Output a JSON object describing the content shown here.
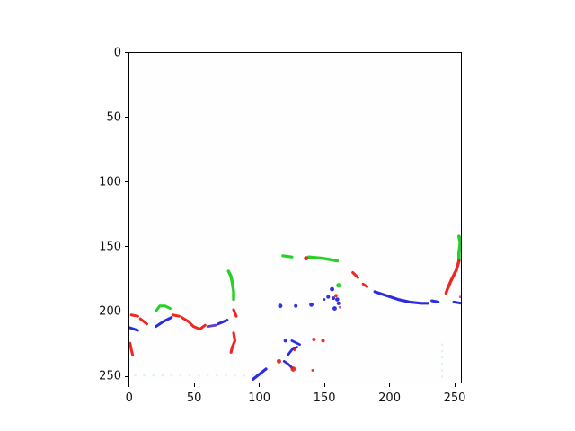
{
  "figure": {
    "background": "#ffffff",
    "title": ""
  },
  "axes": {
    "x_ticks": {
      "values": [
        0,
        50,
        100,
        150,
        200,
        250
      ],
      "labels": [
        "0",
        "50",
        "100",
        "150",
        "200",
        "250"
      ]
    },
    "y_ticks": {
      "values": [
        0,
        50,
        100,
        150,
        200,
        250
      ],
      "labels": [
        "0",
        "50",
        "100",
        "150",
        "200",
        "250"
      ]
    },
    "x_range": [
      -0.5,
      255.5
    ],
    "y_range": [
      255.5,
      -0.5
    ],
    "spine_color": "#000000",
    "tick_label_color": "#111111"
  },
  "chart_data": {
    "type": "heatmap",
    "title": "",
    "xlabel": "",
    "ylabel": "",
    "description": "imshow of a 256x256 mostly-white RGB image containing sparse red, green and blue edge/curve fragments concentrated in the lower half",
    "x_range": [
      -0.5,
      255.5
    ],
    "y_range": [
      255.5,
      -0.5
    ],
    "grid": false,
    "legend": null,
    "colors": {
      "red": "#ee1511",
      "green": "#16cd16",
      "blue": "#1c1cdd",
      "magenta": "#c24ac2",
      "purple": "#5a2fc0",
      "noise": "#a8dfee"
    },
    "default_stroke_width": 2.1,
    "strokes": [
      {
        "color": "red",
        "width": 2.1,
        "points": [
          [
            1,
            203
          ],
          [
            6,
            204
          ]
        ]
      },
      {
        "color": "red",
        "width": 2.1,
        "points": [
          [
            8,
            206
          ],
          [
            13,
            210
          ]
        ]
      },
      {
        "color": "blue",
        "width": 2.1,
        "points": [
          [
            20,
            212
          ],
          [
            26,
            208
          ],
          [
            32,
            205
          ]
        ]
      },
      {
        "color": "green",
        "width": 2.1,
        "points": [
          [
            20,
            200
          ],
          [
            23,
            196
          ],
          [
            27,
            196
          ],
          [
            31,
            198
          ]
        ]
      },
      {
        "color": "red",
        "width": 2.1,
        "points": [
          [
            33,
            203
          ],
          [
            38,
            204
          ]
        ]
      },
      {
        "color": "red",
        "width": 2.1,
        "points": [
          [
            40,
            205
          ],
          [
            45,
            208
          ],
          [
            49,
            212
          ],
          [
            54,
            214
          ],
          [
            58,
            211
          ]
        ]
      },
      {
        "color": "purple",
        "width": 2.0,
        "points": [
          [
            60,
            212
          ],
          [
            66,
            211
          ]
        ]
      },
      {
        "color": "blue",
        "width": 2.1,
        "points": [
          [
            68,
            210
          ],
          [
            75,
            207
          ]
        ]
      },
      {
        "color": "red",
        "width": 2.2,
        "points": [
          [
            80,
            199
          ],
          [
            82,
            204
          ]
        ]
      },
      {
        "color": "green",
        "width": 2.4,
        "points": [
          [
            76,
            169
          ],
          [
            78,
            173
          ],
          [
            79,
            178
          ],
          [
            80,
            185
          ],
          [
            80,
            191
          ]
        ]
      },
      {
        "color": "blue",
        "width": 2.1,
        "points": [
          [
            0,
            213
          ],
          [
            6,
            215
          ]
        ]
      },
      {
        "color": "red",
        "width": 2.1,
        "points": [
          [
            0,
            225
          ],
          [
            1,
            230
          ],
          [
            2,
            234
          ]
        ]
      },
      {
        "color": "red",
        "width": 2.2,
        "points": [
          [
            80,
            217
          ],
          [
            81,
            223
          ],
          [
            79,
            228
          ],
          [
            78,
            232
          ]
        ]
      },
      {
        "color": "blue",
        "width": 2.2,
        "points": [
          [
            95,
            253
          ],
          [
            105,
            245
          ]
        ]
      },
      {
        "color": "blue",
        "width": 1.9,
        "points": [
          [
            119,
            239
          ],
          [
            122,
            241
          ],
          [
            125,
            244
          ]
        ]
      },
      {
        "color": "blue",
        "width": 1.9,
        "points": [
          [
            125,
            223
          ],
          [
            131,
            226
          ]
        ]
      },
      {
        "color": "blue",
        "width": 1.9,
        "points": [
          [
            129,
            228
          ],
          [
            125,
            230
          ],
          [
            122,
            234
          ]
        ]
      },
      {
        "color": "green",
        "width": 2.2,
        "points": [
          [
            118,
            157
          ],
          [
            125,
            158
          ]
        ]
      },
      {
        "color": "green",
        "width": 2.4,
        "points": [
          [
            138,
            158
          ],
          [
            149,
            159
          ],
          [
            160,
            161
          ]
        ]
      },
      {
        "color": "red",
        "width": 2.1,
        "points": [
          [
            172,
            170
          ],
          [
            176,
            174
          ]
        ]
      },
      {
        "color": "red",
        "width": 2.1,
        "points": [
          [
            180,
            179
          ],
          [
            183,
            181
          ]
        ]
      },
      {
        "color": "blue",
        "width": 2.2,
        "points": [
          [
            189,
            185
          ],
          [
            198,
            188
          ],
          [
            207,
            191
          ],
          [
            216,
            193
          ],
          [
            225,
            194
          ],
          [
            230,
            194
          ]
        ]
      },
      {
        "color": "blue",
        "width": 2.1,
        "points": [
          [
            233,
            192
          ],
          [
            238,
            193
          ]
        ]
      },
      {
        "color": "blue",
        "width": 2.1,
        "points": [
          [
            250,
            193
          ],
          [
            256,
            194
          ]
        ]
      },
      {
        "color": "green",
        "width": 2.6,
        "points": [
          [
            254,
            142
          ],
          [
            255,
            147
          ],
          [
            254,
            155
          ],
          [
            254,
            160
          ]
        ]
      },
      {
        "color": "red",
        "width": 2.4,
        "points": [
          [
            254,
            161
          ],
          [
            252,
            168
          ],
          [
            248,
            176
          ],
          [
            245,
            183
          ],
          [
            244,
            186
          ]
        ]
      }
    ],
    "dots": [
      {
        "color": "red",
        "x": 115,
        "y": 239,
        "r": 1.7
      },
      {
        "color": "red",
        "x": 126,
        "y": 245,
        "r": 2.0
      },
      {
        "color": "blue",
        "x": 120,
        "y": 223,
        "r": 1.4
      },
      {
        "color": "red",
        "x": 127,
        "y": 230,
        "r": 1.0
      },
      {
        "color": "red",
        "x": 142,
        "y": 222,
        "r": 1.4
      },
      {
        "color": "red",
        "x": 149,
        "y": 223,
        "r": 1.4
      },
      {
        "color": "red",
        "x": 141,
        "y": 246,
        "r": 1.0
      },
      {
        "color": "green",
        "x": 161,
        "y": 180,
        "r": 1.8
      },
      {
        "color": "blue",
        "x": 156,
        "y": 183,
        "r": 1.7
      },
      {
        "color": "blue",
        "x": 153,
        "y": 189,
        "r": 1.4
      },
      {
        "color": "blue",
        "x": 157,
        "y": 190,
        "r": 1.4
      },
      {
        "color": "blue",
        "x": 160,
        "y": 191,
        "r": 1.6
      },
      {
        "color": "blue",
        "x": 161,
        "y": 194,
        "r": 1.4
      },
      {
        "color": "blue",
        "x": 158,
        "y": 198,
        "r": 1.7
      },
      {
        "color": "blue",
        "x": 150,
        "y": 191,
        "r": 1.0
      },
      {
        "color": "red",
        "x": 159,
        "y": 188,
        "r": 1.3
      },
      {
        "color": "magenta",
        "x": 162,
        "y": 197,
        "r": 1.0
      },
      {
        "color": "blue",
        "x": 116,
        "y": 196,
        "r": 1.7
      },
      {
        "color": "blue",
        "x": 128,
        "y": 196,
        "r": 1.4
      },
      {
        "color": "blue",
        "x": 140,
        "y": 195,
        "r": 1.7
      },
      {
        "color": "red",
        "x": 136,
        "y": 159,
        "r": 1.7
      },
      {
        "color": "magenta",
        "x": 255,
        "y": 189,
        "r": 1.0
      }
    ],
    "noise_dots": [
      [
        4,
        250
      ],
      [
        11,
        250
      ],
      [
        18,
        250
      ],
      [
        25,
        250
      ],
      [
        32,
        250
      ],
      [
        39,
        250
      ],
      [
        46,
        250
      ],
      [
        53,
        250
      ],
      [
        60,
        250
      ],
      [
        67,
        250
      ],
      [
        74,
        250
      ],
      [
        81,
        250
      ],
      [
        88,
        250
      ],
      [
        95,
        250
      ],
      [
        102,
        250
      ],
      [
        241,
        226
      ],
      [
        241,
        231
      ],
      [
        241,
        236
      ],
      [
        241,
        241
      ],
      [
        241,
        246
      ],
      [
        241,
        251
      ]
    ]
  }
}
